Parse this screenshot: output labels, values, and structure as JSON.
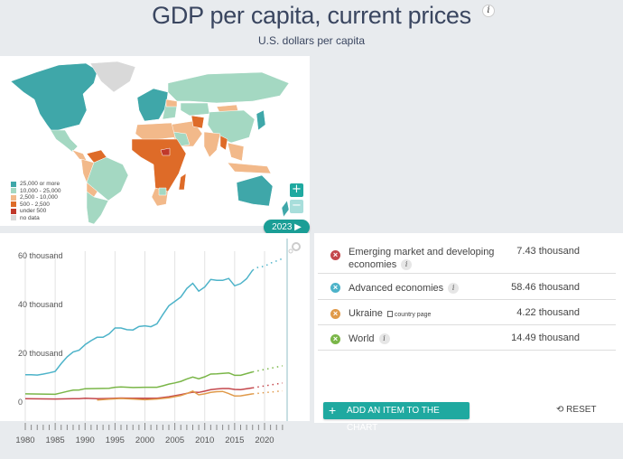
{
  "header": {
    "title": "GDP per capita, current prices",
    "subtitle": "U.S. dollars per capita",
    "info_icon": "i"
  },
  "map": {
    "legend": [
      {
        "label": "25,000 or more",
        "color": "#3fa7a9"
      },
      {
        "label": "10,000 - 25,000",
        "color": "#a4d8c2"
      },
      {
        "label": "2,500 - 10,000",
        "color": "#f2b98a"
      },
      {
        "label": "500 - 2,500",
        "color": "#de6b28"
      },
      {
        "label": "under 500",
        "color": "#c0392b"
      },
      {
        "label": "no data",
        "color": "#d9d9d9"
      }
    ],
    "zoom_in_label": "+",
    "zoom_out_label": "−",
    "year_label": "2023 ▶"
  },
  "chart_data": {
    "type": "line",
    "title": "GDP per capita, current prices",
    "ylabel": "U.S. dollars per capita",
    "xlim": [
      1980,
      2023
    ],
    "ylim": [
      0,
      60
    ],
    "y_ticks": [
      {
        "value": 0,
        "label": "0"
      },
      {
        "value": 20,
        "label": "20 thousand"
      },
      {
        "value": 40,
        "label": "40 thousand"
      },
      {
        "value": 60,
        "label": "60 thousand"
      }
    ],
    "x_ticks": [
      1980,
      1985,
      1990,
      1995,
      2000,
      2005,
      2010,
      2015,
      2020
    ],
    "grid": "vertical",
    "projection_start": 2018,
    "series": [
      {
        "name": "Advanced economies",
        "color": "#4db3c9",
        "x": [
          1980,
          1981,
          1982,
          1983,
          1984,
          1985,
          1986,
          1987,
          1988,
          1989,
          1990,
          1991,
          1992,
          1993,
          1994,
          1995,
          1996,
          1997,
          1998,
          1999,
          2000,
          2001,
          2002,
          2003,
          2004,
          2005,
          2006,
          2007,
          2008,
          2009,
          2010,
          2011,
          2012,
          2013,
          2014,
          2015,
          2016,
          2017,
          2018,
          2019,
          2020,
          2021,
          2022,
          2023
        ],
        "values": [
          10.8,
          10.8,
          10.7,
          11.1,
          11.6,
          12.2,
          15.4,
          18.2,
          20.2,
          20.9,
          23.2,
          24.8,
          26.2,
          26.2,
          27.6,
          30.0,
          30.0,
          29.3,
          29.2,
          30.6,
          30.9,
          30.5,
          31.7,
          35.5,
          39.1,
          40.9,
          42.7,
          46.2,
          48.3,
          45.1,
          46.8,
          49.9,
          49.5,
          49.5,
          50.3,
          47.3,
          48.2,
          50.2,
          53.7,
          55.0,
          55.3,
          56.6,
          57.5,
          58.46
        ],
        "projected_from": 2018
      },
      {
        "name": "World",
        "color": "#7ab648",
        "x": [
          1980,
          1985,
          1986,
          1987,
          1988,
          1989,
          1990,
          1992,
          1994,
          1995,
          1996,
          1998,
          2000,
          2002,
          2003,
          2004,
          2005,
          2006,
          2007,
          2008,
          2009,
          2010,
          2011,
          2012,
          2013,
          2014,
          2015,
          2016,
          2017,
          2018,
          2023
        ],
        "values": [
          3.0,
          2.8,
          3.4,
          4.0,
          4.5,
          4.6,
          5.1,
          5.2,
          5.3,
          5.7,
          5.8,
          5.6,
          5.7,
          5.7,
          6.3,
          7.0,
          7.5,
          8.1,
          9.1,
          9.9,
          9.2,
          10.0,
          11.1,
          11.2,
          11.4,
          11.6,
          10.6,
          10.6,
          11.3,
          12.0,
          14.49
        ],
        "projected_from": 2018
      },
      {
        "name": "Emerging market and developing economies",
        "color": "#c4474c",
        "x": [
          1980,
          1985,
          1988,
          1989,
          1990,
          1992,
          1994,
          1996,
          1998,
          2000,
          2002,
          2004,
          2006,
          2008,
          2009,
          2010,
          2011,
          2012,
          2013,
          2014,
          2015,
          2016,
          2017,
          2018,
          2023
        ],
        "values": [
          1.0,
          0.9,
          1.0,
          1.0,
          1.2,
          1.0,
          1.1,
          1.3,
          1.2,
          1.2,
          1.2,
          1.8,
          2.7,
          3.7,
          3.6,
          4.1,
          4.7,
          5.0,
          5.2,
          5.2,
          4.8,
          4.7,
          5.1,
          5.5,
          7.43
        ],
        "projected_from": 2018
      },
      {
        "name": "Ukraine",
        "color": "#e09a4a",
        "x": [
          1992,
          1994,
          1996,
          1998,
          2000,
          2002,
          2004,
          2006,
          2007,
          2008,
          2009,
          2010,
          2011,
          2012,
          2013,
          2014,
          2015,
          2016,
          2017,
          2018,
          2023
        ],
        "values": [
          0.5,
          0.8,
          1.1,
          0.9,
          0.6,
          0.9,
          1.4,
          2.3,
          3.1,
          4.1,
          2.6,
          3.0,
          3.6,
          3.9,
          4.0,
          3.1,
          2.1,
          2.2,
          2.6,
          3.0,
          4.22
        ],
        "projected_from": 2018
      }
    ]
  },
  "series_list": [
    {
      "name_line1": "Emerging market and developing",
      "name_line2": "economies",
      "value": "7.43 thousand",
      "color": "#c4474c",
      "info": "i",
      "remove": "×"
    },
    {
      "name": "Advanced economies",
      "value": "58.46 thousand",
      "color": "#4db3c9",
      "info": "i",
      "remove": "×"
    },
    {
      "name": "Ukraine",
      "country_page": "country page",
      "value": "4.22 thousand",
      "color": "#e09a4a",
      "remove": "×"
    },
    {
      "name": "World",
      "value": "14.49 thousand",
      "color": "#7ab648",
      "info": "i",
      "remove": "×"
    }
  ],
  "actions": {
    "add_item": "ADD AN ITEM TO THE CHART",
    "add_plus": "+",
    "reset": "RESET",
    "reset_icon": "⟲"
  }
}
